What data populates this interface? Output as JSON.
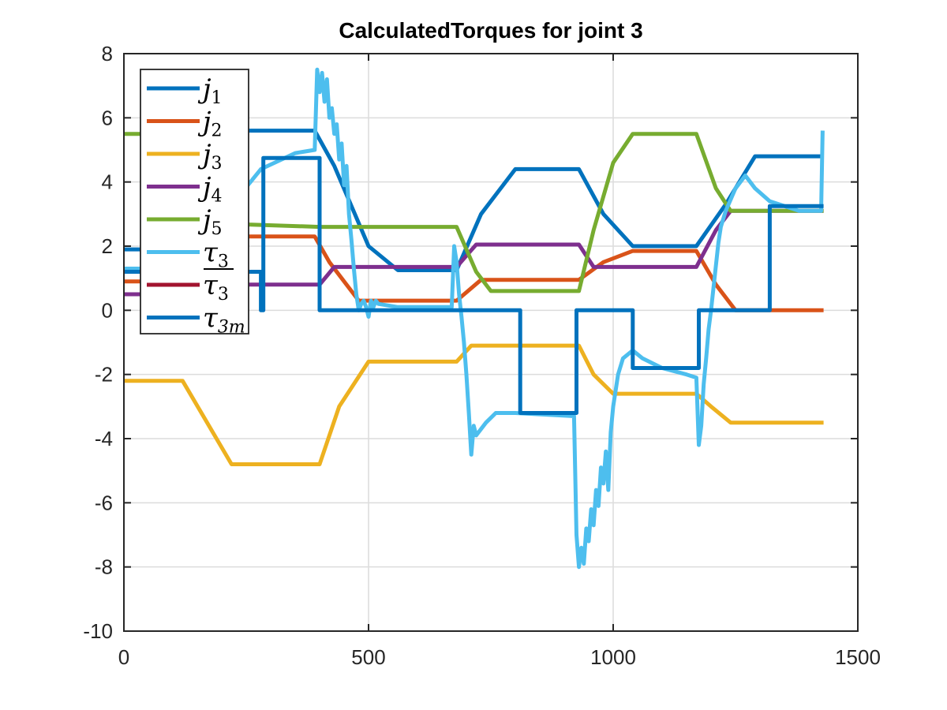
{
  "chart_data": {
    "type": "line",
    "title": "CalculatedTorques for joint 3",
    "xlim": [
      0,
      1500
    ],
    "ylim": [
      -10,
      8
    ],
    "xticks": [
      0,
      500,
      1000,
      1500
    ],
    "xtick_labels": [
      "0",
      "500",
      "1000",
      "1500"
    ],
    "yticks": [
      -10,
      -8,
      -6,
      -4,
      -2,
      0,
      2,
      4,
      6,
      8
    ],
    "ytick_labels": [
      "-10",
      "-8",
      "-6",
      "-4",
      "-2",
      "0",
      "2",
      "4",
      "6",
      "8"
    ],
    "grid": true,
    "legend_position": "top-left",
    "series": [
      {
        "name": "j1",
        "legend_main": "j",
        "legend_sub": "1",
        "legend_bar": false,
        "legend_sub_italic": false,
        "color": "#0072BD",
        "x": [
          0,
          120,
          220,
          280,
          390,
          430,
          500,
          560,
          680,
          730,
          800,
          930,
          980,
          1040,
          1170,
          1230,
          1290,
          1430
        ],
        "y": [
          1.9,
          1.9,
          5.6,
          5.6,
          5.6,
          4.5,
          2.0,
          1.25,
          1.25,
          3.0,
          4.4,
          4.4,
          3.0,
          2.0,
          2.0,
          3.3,
          4.8,
          4.8
        ]
      },
      {
        "name": "j2",
        "legend_main": "j",
        "legend_sub": "2",
        "legend_bar": false,
        "legend_sub_italic": false,
        "color": "#D95319",
        "x": [
          0,
          120,
          220,
          390,
          420,
          480,
          680,
          730,
          930,
          980,
          1040,
          1170,
          1210,
          1250,
          1430
        ],
        "y": [
          0.9,
          0.9,
          2.3,
          2.3,
          1.5,
          0.3,
          0.3,
          0.95,
          0.95,
          1.5,
          1.85,
          1.85,
          0.8,
          0.0,
          0.0
        ]
      },
      {
        "name": "j3",
        "legend_main": "j",
        "legend_sub": "3",
        "legend_bar": false,
        "legend_sub_italic": false,
        "color": "#EDB120",
        "x": [
          0,
          120,
          220,
          400,
          440,
          500,
          680,
          710,
          930,
          960,
          1000,
          1170,
          1200,
          1240,
          1430
        ],
        "y": [
          -2.2,
          -2.2,
          -4.8,
          -4.8,
          -3.0,
          -1.6,
          -1.6,
          -1.1,
          -1.1,
          -2.0,
          -2.6,
          -2.6,
          -3.0,
          -3.5,
          -3.5
        ]
      },
      {
        "name": "j4",
        "legend_main": "j",
        "legend_sub": "4",
        "legend_bar": false,
        "legend_sub_italic": false,
        "color": "#7E2F8E",
        "x": [
          0,
          120,
          200,
          400,
          430,
          680,
          720,
          930,
          960,
          1170,
          1210,
          1240,
          1430
        ],
        "y": [
          0.5,
          0.5,
          0.8,
          0.8,
          1.35,
          1.35,
          2.05,
          2.05,
          1.35,
          1.35,
          2.5,
          3.1,
          3.1
        ]
      },
      {
        "name": "j5",
        "legend_main": "j",
        "legend_sub": "5",
        "legend_bar": false,
        "legend_sub_italic": false,
        "color": "#77AC30",
        "x": [
          0,
          120,
          200,
          400,
          680,
          720,
          750,
          930,
          960,
          1000,
          1040,
          1170,
          1210,
          1240,
          1430
        ],
        "y": [
          5.5,
          5.5,
          2.7,
          2.6,
          2.6,
          1.2,
          0.6,
          0.6,
          2.5,
          4.6,
          5.5,
          5.5,
          3.8,
          3.1,
          3.1
        ]
      },
      {
        "name": "tau3",
        "legend_main": "τ",
        "legend_sub": "3",
        "legend_bar": false,
        "legend_sub_italic": false,
        "color": "#4DBEEE",
        "x": [
          0,
          120,
          200,
          280,
          350,
          390,
          395,
          400,
          405,
          410,
          415,
          420,
          425,
          430,
          435,
          440,
          445,
          450,
          455,
          460,
          465,
          470,
          475,
          480,
          485,
          490,
          495,
          500,
          505,
          510,
          515,
          520,
          560,
          670,
          675,
          680,
          685,
          690,
          695,
          700,
          705,
          710,
          715,
          720,
          740,
          760,
          800,
          920,
          925,
          930,
          935,
          940,
          945,
          950,
          955,
          960,
          965,
          970,
          975,
          980,
          985,
          990,
          995,
          1000,
          1010,
          1020,
          1040,
          1060,
          1100,
          1150,
          1170,
          1175,
          1180,
          1185,
          1190,
          1195,
          1200,
          1205,
          1210,
          1215,
          1220,
          1230,
          1250,
          1270,
          1290,
          1320,
          1380,
          1425,
          1428
        ],
        "y": [
          1.3,
          1.3,
          2.9,
          4.4,
          4.9,
          5.0,
          7.5,
          6.8,
          7.4,
          6.5,
          7.2,
          6.0,
          6.3,
          5.5,
          5.8,
          4.7,
          5.2,
          3.9,
          4.5,
          3.0,
          2.2,
          1.3,
          0.5,
          0.0,
          0.2,
          0.3,
          0.1,
          -0.2,
          0.3,
          0.1,
          0.3,
          0.2,
          0.1,
          0.1,
          2.0,
          1.5,
          0.5,
          -0.2,
          -1.0,
          -2.0,
          -3.2,
          -4.5,
          -3.6,
          -3.9,
          -3.5,
          -3.2,
          -3.2,
          -3.3,
          -7.0,
          -8.0,
          -7.4,
          -7.9,
          -6.8,
          -7.2,
          -6.2,
          -6.7,
          -5.6,
          -6.1,
          -4.9,
          -5.4,
          -4.4,
          -5.6,
          -3.8,
          -3.0,
          -2.0,
          -1.5,
          -1.25,
          -1.5,
          -1.8,
          -2.0,
          -2.1,
          -4.2,
          -3.6,
          -2.3,
          -1.5,
          -0.6,
          0.0,
          0.7,
          1.4,
          2.1,
          2.6,
          3.1,
          3.8,
          4.2,
          3.8,
          3.4,
          3.1,
          3.1,
          5.6
        ]
      },
      {
        "name": "tau3 bar",
        "legend_main": "τ",
        "legend_sub": "3",
        "legend_bar": true,
        "legend_sub_italic": false,
        "color": "#A2142F",
        "x": [],
        "y": []
      },
      {
        "name": "tau3m",
        "legend_main": "τ",
        "legend_sub": "3m",
        "legend_bar": false,
        "legend_sub_italic": true,
        "color": "#0072BD",
        "x": [
          0,
          280,
          280,
          285,
          285,
          400,
          400,
          810,
          810,
          925,
          925,
          1040,
          1040,
          1175,
          1175,
          1320,
          1320,
          1430
        ],
        "y": [
          1.2,
          1.2,
          0.0,
          0.0,
          4.75,
          4.75,
          0.0,
          0.0,
          -3.2,
          -3.2,
          0.0,
          0.0,
          -1.8,
          -1.8,
          0.0,
          0.0,
          3.25,
          3.25
        ]
      }
    ]
  }
}
